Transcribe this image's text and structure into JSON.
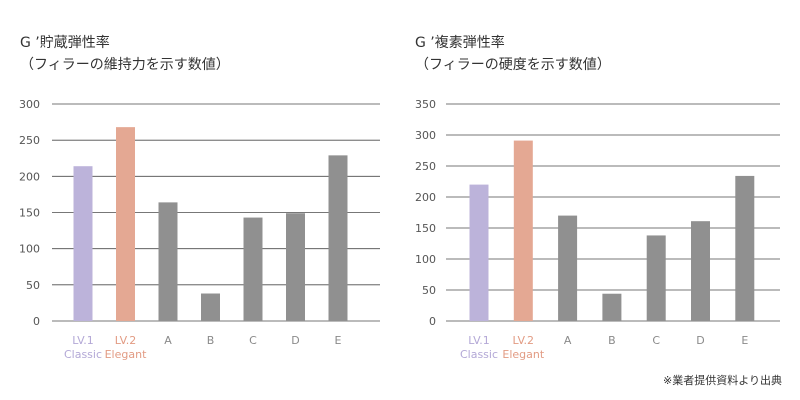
{
  "chart_data": [
    {
      "type": "bar",
      "title": "G ’貯蔵弾性率",
      "subtitle": "（フィラーの維持力を示す数値）",
      "categories": [
        "LV.1",
        "LV.2",
        "A",
        "B",
        "C",
        "D",
        "E"
      ],
      "category_sublabels": [
        "Classic",
        "Elegant",
        "",
        "",
        "",
        "",
        ""
      ],
      "values": [
        214,
        268,
        164,
        38,
        143,
        149,
        229
      ],
      "colors": [
        "#bcb3da",
        "#e4a893",
        "#909090",
        "#909090",
        "#909090",
        "#909090",
        "#909090"
      ],
      "label_colors": [
        "#b3a8d6",
        "#e29b83",
        "#8a8a8a",
        "#8a8a8a",
        "#8a8a8a",
        "#8a8a8a",
        "#8a8a8a"
      ],
      "yticks": [
        0,
        50,
        100,
        150,
        200,
        250,
        300
      ],
      "ylim": [
        0,
        300
      ],
      "grid": true
    },
    {
      "type": "bar",
      "title": "G ’複素弾性率",
      "subtitle": "（フィラーの硬度を示す数値）",
      "categories": [
        "LV.1",
        "LV.2",
        "A",
        "B",
        "C",
        "D",
        "E"
      ],
      "category_sublabels": [
        "Classic",
        "Elegant",
        "",
        "",
        "",
        "",
        ""
      ],
      "values": [
        220,
        291,
        170,
        44,
        138,
        161,
        234
      ],
      "colors": [
        "#bcb3da",
        "#e4a893",
        "#909090",
        "#909090",
        "#909090",
        "#909090",
        "#909090"
      ],
      "label_colors": [
        "#b3a8d6",
        "#e29b83",
        "#8a8a8a",
        "#8a8a8a",
        "#8a8a8a",
        "#8a8a8a",
        "#8a8a8a"
      ],
      "yticks": [
        0,
        50,
        100,
        150,
        200,
        250,
        300,
        350
      ],
      "ylim": [
        0,
        350
      ],
      "grid": true
    }
  ],
  "source_note": "※業者提供資料より出典"
}
